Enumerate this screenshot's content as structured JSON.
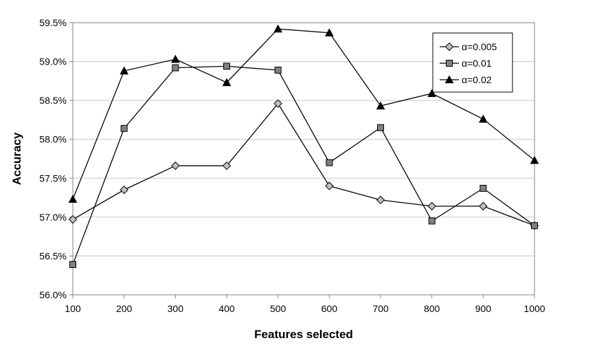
{
  "chart_data": {
    "type": "line",
    "title": "",
    "xlabel": "Features selected",
    "ylabel": "Accuracy",
    "x": [
      100,
      200,
      300,
      400,
      500,
      600,
      700,
      800,
      900,
      1000
    ],
    "x_tick_labels": [
      "100",
      "200",
      "300",
      "400",
      "500",
      "600",
      "700",
      "800",
      "900",
      "1000"
    ],
    "ylim": [
      56.0,
      59.5
    ],
    "y_ticks": [
      56.0,
      56.5,
      57.0,
      57.5,
      58.0,
      58.5,
      59.0,
      59.5
    ],
    "y_tick_labels": [
      "56.0%",
      "56.5%",
      "57.0%",
      "57.5%",
      "58.0%",
      "58.5%",
      "59.0%",
      "59.5%"
    ],
    "grid": true,
    "legend_position": "top-right",
    "series": [
      {
        "name": "α=0.005",
        "marker": "diamond",
        "marker_color": "#c0c0c0",
        "values": [
          56.97,
          57.35,
          57.66,
          57.66,
          58.46,
          57.4,
          57.22,
          57.14,
          57.14,
          56.89
        ]
      },
      {
        "name": "α=0.01",
        "marker": "square",
        "marker_color": "#808080",
        "values": [
          56.39,
          58.14,
          58.92,
          58.94,
          58.89,
          57.7,
          58.15,
          56.95,
          57.37,
          56.89
        ]
      },
      {
        "name": "α=0.02",
        "marker": "triangle",
        "marker_color": "#000000",
        "values": [
          57.23,
          58.88,
          59.03,
          58.73,
          59.42,
          59.37,
          58.43,
          58.59,
          58.26,
          57.73
        ]
      }
    ]
  }
}
